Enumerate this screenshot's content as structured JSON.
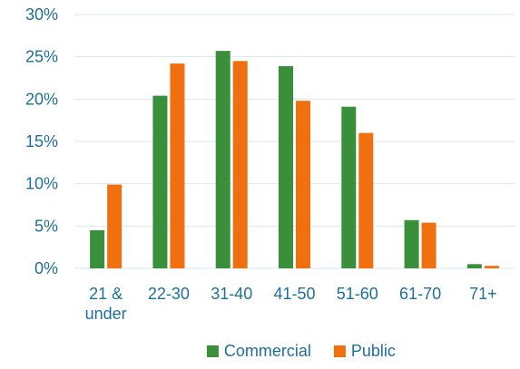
{
  "chart_data": {
    "type": "bar",
    "categories": [
      "21 & under",
      "22-30",
      "31-40",
      "41-50",
      "51-60",
      "61-70",
      "71+"
    ],
    "category_lines": [
      [
        "21 &",
        "under"
      ],
      [
        "22-30"
      ],
      [
        "31-40"
      ],
      [
        "41-50"
      ],
      [
        "51-60"
      ],
      [
        "61-70"
      ],
      [
        "71+"
      ]
    ],
    "series": [
      {
        "name": "Commercial",
        "color": "#3a8f3a",
        "values": [
          4.5,
          20.4,
          25.7,
          23.9,
          19.1,
          5.7,
          0.5
        ]
      },
      {
        "name": "Public",
        "color": "#f07010",
        "values": [
          9.9,
          24.2,
          24.5,
          19.8,
          16.0,
          5.4,
          0.3
        ]
      }
    ],
    "y_ticks": [
      "0%",
      "5%",
      "10%",
      "15%",
      "20%",
      "25%",
      "30%"
    ],
    "ylim": [
      0,
      30
    ],
    "ylabel": "",
    "xlabel": "",
    "title": "",
    "grid": true,
    "gridline_color": "#d9e7f1",
    "text_color": "#1f6f9a",
    "legend_position": "bottom"
  }
}
